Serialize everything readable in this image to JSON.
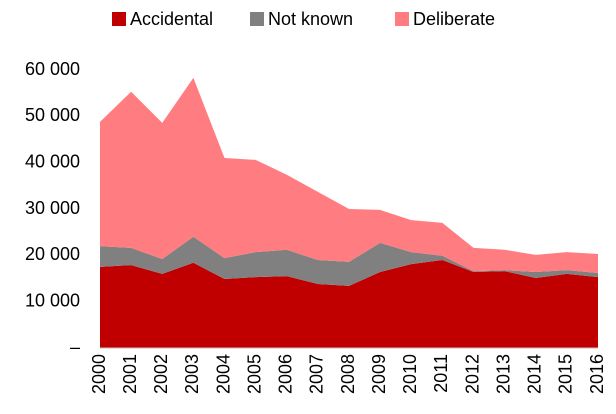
{
  "chart_data": {
    "type": "stacked_area",
    "categories": [
      "2000",
      "2001",
      "2002",
      "2003",
      "2004",
      "2005",
      "2006",
      "2007",
      "2008",
      "2009",
      "2010",
      "2011",
      "2012",
      "2013",
      "2014",
      "2015",
      "2016"
    ],
    "series": [
      {
        "name": "Accidental",
        "color": "#c00000",
        "values": [
          17500,
          17900,
          16000,
          18400,
          14900,
          15300,
          15500,
          13800,
          13400,
          16400,
          18100,
          19000,
          16400,
          16600,
          15100,
          16000,
          15300
        ]
      },
      {
        "name": "Not known",
        "color": "#808080",
        "values": [
          4500,
          3700,
          3200,
          5600,
          4500,
          5400,
          5700,
          5200,
          5200,
          6300,
          2600,
          900,
          200,
          200,
          1300,
          800,
          900
        ]
      },
      {
        "name": "Deliberate",
        "color": "#ff7c80",
        "values": [
          26800,
          33700,
          29400,
          34300,
          21600,
          19900,
          16200,
          14700,
          11400,
          7100,
          6900,
          7100,
          5000,
          4400,
          3700,
          3900,
          4100
        ]
      }
    ],
    "ylim": [
      0,
      60000
    ],
    "yticks": [
      {
        "value": 0,
        "label": "–"
      },
      {
        "value": 10000,
        "label": "10 000"
      },
      {
        "value": 20000,
        "label": "20 000"
      },
      {
        "value": 30000,
        "label": "30 000"
      },
      {
        "value": 40000,
        "label": "40 000"
      },
      {
        "value": 50000,
        "label": "50 000"
      },
      {
        "value": 60000,
        "label": "60 000"
      }
    ],
    "grid": false,
    "legend": "top"
  }
}
